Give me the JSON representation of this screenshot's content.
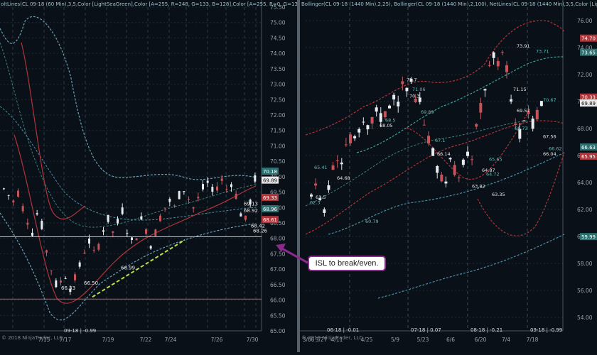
{
  "charts": {
    "left": {
      "header": "oltLines(CL 09-18 (60 Min),3,5,Color [LightSeaGreen],Color [A=255, R=248, G=133, B=128],Color [A=255, R=0, G=131, B=",
      "copyright": "© 2018 NinjaTrader, LLC",
      "contract_label": "09-18 | -0.99",
      "yticks": [
        "75.50",
        "75.00",
        "74.50",
        "74.00",
        "73.50",
        "73.00",
        "72.50",
        "72.00",
        "71.50",
        "71.00",
        "70.50",
        "70.00",
        "69.50",
        "69.00",
        "68.50",
        "68.00",
        "67.50",
        "67.00",
        "66.50",
        "66.00",
        "65.50",
        "65.00"
      ],
      "xticks": [
        "7/15",
        "7/17",
        "7/19",
        "7/22",
        "7/24",
        "7/26",
        "7/30"
      ],
      "price_badges": [
        {
          "text": "70.18",
          "color": "#2f6f6f"
        },
        {
          "text": "69.89",
          "color": "#e8e8e8"
        },
        {
          "text": "69.33",
          "color": "#b0343a"
        },
        {
          "text": "68.96",
          "color": "#2f6f6f"
        },
        {
          "text": "68.61",
          "color": "#b0343a"
        }
      ],
      "levels": [
        "69.13",
        "68.92",
        "68.42",
        "68.26",
        "66.99",
        "66.99",
        "66.33",
        "66.50"
      ]
    },
    "right": {
      "header": "Bollinger(CL 09-18 (1440 Min),2,25), Bollinger(CL 09-18 (1440 Min),2,100), NetLines(CL 09-18 (1440 Min),3,5,Color [Lig",
      "copyright": "© 2018 NinjaTrader, LLC",
      "contract_labels": [
        "06-18 | -0.01",
        "07-18 | 0.07",
        "08-18 | -0.21",
        "09-18 | -0.99"
      ],
      "yticks": [
        "76.00",
        "74.00",
        "72.00",
        "70.00",
        "68.00",
        "66.00",
        "64.00",
        "62.00",
        "60.00",
        "58.00",
        "56.00",
        "54.00"
      ],
      "xticks": [
        "3/06",
        "3/27",
        "4/11",
        "4/25",
        "5/9",
        "5/23",
        "6/6",
        "6/20",
        "7/4",
        "7/18"
      ],
      "price_badges": [
        {
          "text": "74.70",
          "color": "#b0343a"
        },
        {
          "text": "73.65",
          "color": "#2f6f6f"
        },
        {
          "text": "70.33",
          "color": "#b0343a"
        },
        {
          "text": "69.89",
          "color": "#e8e8e8"
        },
        {
          "text": "66.63",
          "color": "#2f6f6f"
        },
        {
          "text": "65.95",
          "color": "#b0343a"
        },
        {
          "text": "59.99",
          "color": "#2f6f6f"
        }
      ],
      "levels": [
        "73.91",
        "73.71",
        "71.7",
        "71.06",
        "70.3",
        "69.89",
        "71.15",
        "70.67",
        "69.57",
        "68.73",
        "67.56",
        "66.62",
        "66.04",
        "68.5",
        "68.05",
        "67.1",
        "66.14",
        "65.41",
        "64.68",
        "64.72",
        "63.35",
        "60.79",
        "63.5",
        "62.3",
        "64.87",
        "65.65",
        "63.82"
      ]
    }
  },
  "callout": {
    "text": "ISL to break/even.",
    "border_color": "#8a2a8a"
  },
  "chart_data": [
    {
      "type": "line",
      "title": "CL 09-18 (60 Min)",
      "ylim": [
        65.0,
        75.5
      ],
      "x": [
        "7/15",
        "7/17",
        "7/19",
        "7/22",
        "7/24",
        "7/26",
        "7/30"
      ],
      "series": [
        {
          "values": [
            69.6,
            67.0,
            66.6,
            67.6,
            67.9,
            68.9,
            69.9
          ]
        }
      ],
      "annotations": [
        "ISL to break/even."
      ],
      "grid": true
    },
    {
      "type": "line",
      "title": "CL 09-18 (1440 Min)",
      "ylim": [
        53.0,
        77.0
      ],
      "x": [
        "3/06",
        "3/27",
        "4/11",
        "4/25",
        "5/9",
        "5/23",
        "6/6",
        "6/20",
        "7/4",
        "7/18"
      ],
      "series": [
        {
          "values": [
            62.5,
            64.5,
            66.5,
            68.0,
            69.5,
            71.5,
            66.0,
            64.5,
            73.5,
            69.9
          ]
        }
      ],
      "grid": true
    }
  ]
}
